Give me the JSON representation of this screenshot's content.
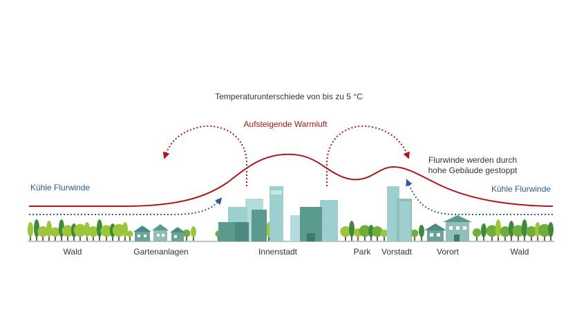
{
  "title": "Temperaturunterschiede von bis zu 5 °C",
  "warm_air_label": "Aufsteigende Warmluft",
  "barrier_note": [
    "Flurwinde werden durch",
    "hohe Gebäude gestoppt"
  ],
  "left_wind_label": "Kühle Flurwinde",
  "right_wind_label": "Kühle Flurwinde",
  "zones": [
    "Wald",
    "Gartenanlagen",
    "Innenstadt",
    "Park",
    "Vorstadt",
    "Vorort",
    "Wald"
  ],
  "colors": {
    "warm": "#b5121b",
    "cool": "#2b5aa6",
    "tree_dark": "#3f8a3a",
    "tree_light": "#9bc63b",
    "trunk": "#6b5a4e",
    "building_teal": "#9ecfcf",
    "building_dark": "#5a9a8f",
    "ground": "#b9c7c9"
  }
}
